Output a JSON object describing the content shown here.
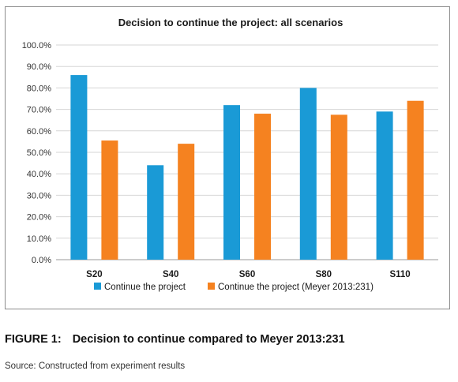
{
  "chart_data": {
    "type": "bar",
    "title": "Decision to continue the project: all scenarios",
    "categories": [
      "S20",
      "S40",
      "S60",
      "S80",
      "S110"
    ],
    "series": [
      {
        "name": "Continue the project",
        "color": "#1a9ad6",
        "values": [
          86.0,
          44.0,
          72.0,
          80.0,
          69.0
        ]
      },
      {
        "name": "Continue the project (Meyer 2013:231)",
        "color": "#f58220",
        "values": [
          55.5,
          54.0,
          68.0,
          67.5,
          74.0
        ]
      }
    ],
    "ylim": [
      0,
      100
    ],
    "yticks": [
      "0.0%",
      "10.0%",
      "20.0%",
      "30.0%",
      "40.0%",
      "50.0%",
      "60.0%",
      "70.0%",
      "80.0%",
      "90.0%",
      "100.0%"
    ],
    "grid": true,
    "legend_position": "bottom"
  },
  "caption": {
    "label": "FIGURE 1:",
    "text": "Decision to continue compared to Meyer 2013:231"
  },
  "source": "Source: Constructed from experiment results"
}
